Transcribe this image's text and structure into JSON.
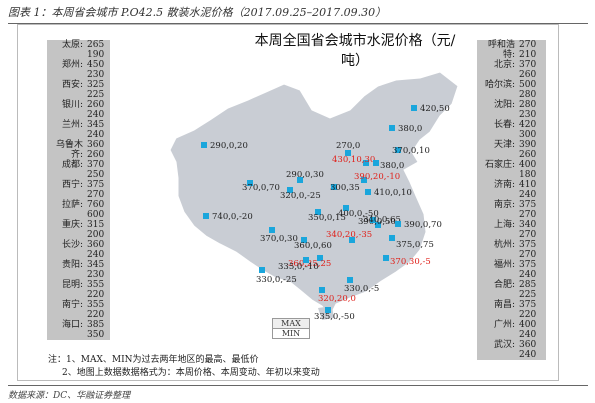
{
  "caption": "图表 1：本周省会城市 P.O42.5 散装水泥价格（2017.09.25–2017.09.30）",
  "map_title": "本周全国省会城市水泥价格（元/吨）",
  "left_cities": [
    {
      "name": "太原:",
      "now": "265",
      "prev": "190"
    },
    {
      "name": "郑州:",
      "now": "450",
      "prev": "230"
    },
    {
      "name": "西安:",
      "now": "325",
      "prev": "225"
    },
    {
      "name": "银川:",
      "now": "260",
      "prev": "240"
    },
    {
      "name": "兰州:",
      "now": "345",
      "prev": "240"
    },
    {
      "name": "乌鲁木齐:",
      "now": "360",
      "prev": "260"
    },
    {
      "name": "成都:",
      "now": "370",
      "prev": "250"
    },
    {
      "name": "西宁:",
      "now": "375",
      "prev": "270"
    },
    {
      "name": "拉萨:",
      "now": "760",
      "prev": "600"
    },
    {
      "name": "重庆:",
      "now": "315",
      "prev": "200"
    },
    {
      "name": "长沙:",
      "now": "360",
      "prev": "240"
    },
    {
      "name": "贵阳:",
      "now": "345",
      "prev": "230"
    },
    {
      "name": "昆明:",
      "now": "355",
      "prev": "220"
    },
    {
      "name": "南宁:",
      "now": "355",
      "prev": "220"
    },
    {
      "name": "海口:",
      "now": "385",
      "prev": "350"
    }
  ],
  "right_cities": [
    {
      "name": "呼和浩特:",
      "now": "270",
      "prev": "210"
    },
    {
      "name": "北京:",
      "now": "370",
      "prev": "260"
    },
    {
      "name": "哈尔滨:",
      "now": "500",
      "prev": "280"
    },
    {
      "name": "沈阳:",
      "now": "280",
      "prev": "230"
    },
    {
      "name": "长春:",
      "now": "420",
      "prev": "300"
    },
    {
      "name": "天津:",
      "now": "390",
      "prev": "260"
    },
    {
      "name": "石家庄:",
      "now": "400",
      "prev": "180"
    },
    {
      "name": "济南:",
      "now": "410",
      "prev": "240"
    },
    {
      "name": "南京:",
      "now": "375",
      "prev": "270"
    },
    {
      "name": "上海:",
      "now": "340",
      "prev": "270"
    },
    {
      "name": "杭州:",
      "now": "375",
      "prev": "270"
    },
    {
      "name": "福州:",
      "now": "375",
      "prev": "240"
    },
    {
      "name": "合肥:",
      "now": "285",
      "prev": "225"
    },
    {
      "name": "南昌:",
      "now": "375",
      "prev": "220"
    },
    {
      "name": "广州:",
      "now": "400",
      "prev": "240"
    },
    {
      "name": "武汉:",
      "now": "360",
      "prev": "240"
    }
  ],
  "legend": {
    "max": "MAX",
    "min": "MIN"
  },
  "notes": [
    "注：1、MAX、MIN为过去两年地区的最高、最低价",
    "2、地图上数据数据格式为：本周价格、本周变动、年初以来变动"
  ],
  "source": "数据来源：DC、华融证券整理",
  "markers": [
    {
      "label": "420,50",
      "color": "black"
    },
    {
      "label": "380,0",
      "color": "black"
    },
    {
      "label": "290,0,20",
      "color": "black"
    },
    {
      "label": "270,0",
      "color": "black"
    },
    {
      "label": "370,0,10",
      "color": "black"
    },
    {
      "label": "430,10,30",
      "color": "red"
    },
    {
      "label": "380,0",
      "color": "black"
    },
    {
      "label": "370,0,70",
      "color": "black"
    },
    {
      "label": "290,0,30",
      "color": "black"
    },
    {
      "label": "320,0,-25",
      "color": "black"
    },
    {
      "label": "300,35",
      "color": "black"
    },
    {
      "label": "390,20,-10",
      "color": "red"
    },
    {
      "label": "410,0,10",
      "color": "black"
    },
    {
      "label": "740,0,-20",
      "color": "black"
    },
    {
      "label": "350,0,15",
      "color": "black"
    },
    {
      "label": "400,0,-50",
      "color": "black"
    },
    {
      "label": "390,0,50",
      "color": "black"
    },
    {
      "label": "340,0,65",
      "color": "black"
    },
    {
      "label": "390,0,70",
      "color": "black"
    },
    {
      "label": "370,0,30",
      "color": "black"
    },
    {
      "label": "360,0,60",
      "color": "black"
    },
    {
      "label": "340,20,-35",
      "color": "red"
    },
    {
      "label": "375,0,75",
      "color": "black"
    },
    {
      "label": "360,25,25",
      "color": "red"
    },
    {
      "label": "370,30,-5",
      "color": "red"
    },
    {
      "label": "330,0,-25",
      "color": "black"
    },
    {
      "label": "335,0,-10",
      "color": "black"
    },
    {
      "label": "330,0,-5",
      "color": "black"
    },
    {
      "label": "320,20,0",
      "color": "red"
    },
    {
      "label": "335,0,-50",
      "color": "black"
    }
  ],
  "colors": {
    "map_fill": "#c9cdd4",
    "marker": "#1aa6dc",
    "red_label": "#e0201a",
    "box": "#c4c4c4"
  }
}
